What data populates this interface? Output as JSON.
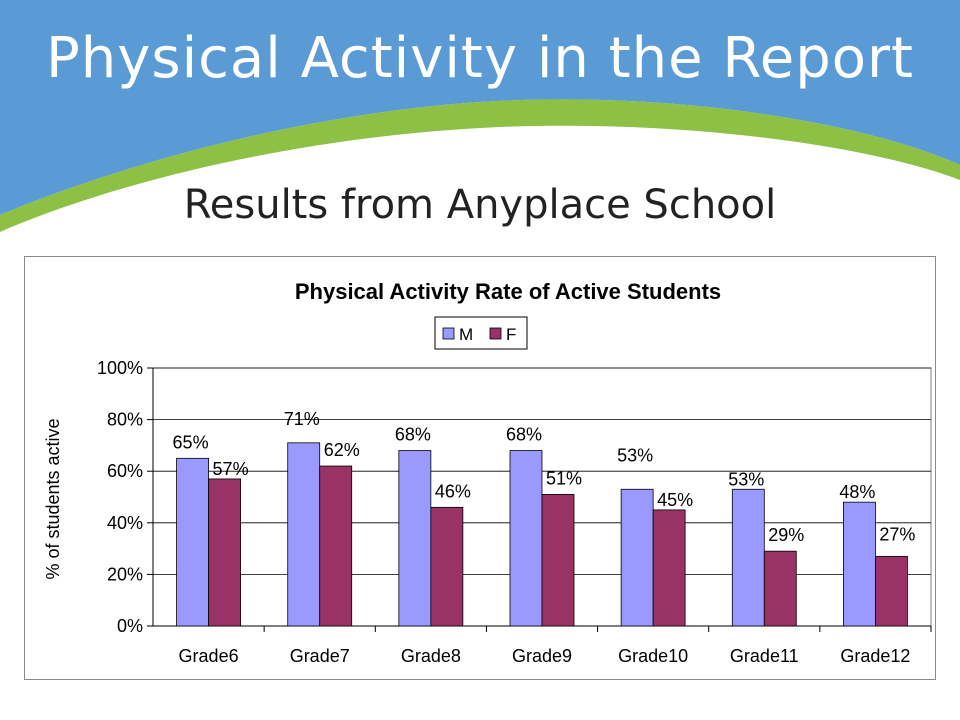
{
  "slide": {
    "title": "Physical Activity in the Report",
    "subtitle": "Results from  Anyplace School"
  },
  "colors": {
    "banner_blue": "#5b9bd5",
    "banner_green": "#8dc044",
    "series_m": "#9999ff",
    "series_f": "#993366"
  },
  "chart_data": {
    "type": "bar",
    "title": "Physical Activity Rate of Active Students",
    "xlabel": "",
    "ylabel": "% of students active",
    "categories": [
      "Grade6",
      "Grade7",
      "Grade8",
      "Grade9",
      "Grade10",
      "Grade11",
      "Grade12"
    ],
    "series": [
      {
        "name": "M",
        "color": "#9999ff",
        "values": [
          65,
          71,
          68,
          68,
          53,
          53,
          48
        ],
        "labels": [
          "65%",
          "71%",
          "68%",
          "68%",
          "53%",
          "53%",
          "48%"
        ]
      },
      {
        "name": "F",
        "color": "#993366",
        "values": [
          57,
          62,
          46,
          51,
          45,
          29,
          27
        ],
        "labels": [
          "57%",
          "62%",
          "46%",
          "51%",
          "45%",
          "29%",
          "27%"
        ]
      }
    ],
    "yticks": [
      "0%",
      "20%",
      "40%",
      "60%",
      "80%",
      "100%"
    ],
    "ylim": [
      0,
      100
    ],
    "grid": true,
    "legend": "top-center"
  }
}
